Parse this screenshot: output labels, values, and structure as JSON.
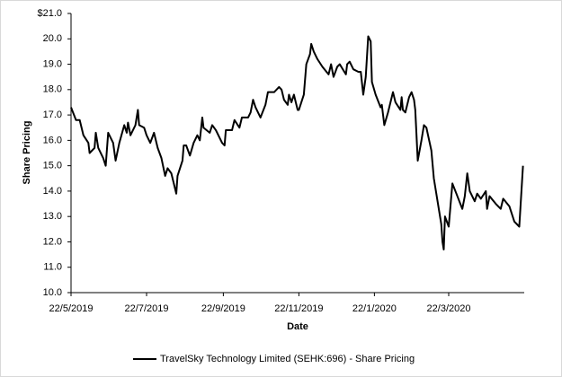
{
  "chart_data": {
    "type": "line",
    "y_label": "Share Pricing",
    "x_label": "Date",
    "xlim": [
      "2019-05-22",
      "2020-05-22"
    ],
    "xticks": [
      {
        "value": "2019-05-22",
        "label": "22/5/2019"
      },
      {
        "value": "2019-07-22",
        "label": "22/7/2019"
      },
      {
        "value": "2019-09-22",
        "label": "22/9/2019"
      },
      {
        "value": "2019-11-22",
        "label": "22/11/2019"
      },
      {
        "value": "2020-01-22",
        "label": "22/1/2020"
      },
      {
        "value": "2020-03-22",
        "label": "22/3/2020"
      }
    ],
    "ylim": [
      10,
      21
    ],
    "yticks": [
      {
        "value": 10,
        "label": "10.0"
      },
      {
        "value": 11,
        "label": "11.0"
      },
      {
        "value": 12,
        "label": "12.0"
      },
      {
        "value": 13,
        "label": "13.0"
      },
      {
        "value": 14,
        "label": "14.0"
      },
      {
        "value": 15,
        "label": "15.0"
      },
      {
        "value": 16,
        "label": "16.0"
      },
      {
        "value": 17,
        "label": "17.0"
      },
      {
        "value": 18,
        "label": "18.0"
      },
      {
        "value": 19,
        "label": "19.0"
      },
      {
        "value": 20,
        "label": "20.0"
      },
      {
        "value": 21,
        "label": "$21.0"
      }
    ],
    "legend": "bottom",
    "x": [
      "2019-05-22",
      "2019-05-26",
      "2019-05-29",
      "2019-06-01",
      "2019-06-05",
      "2019-06-06",
      "2019-06-10",
      "2019-06-11",
      "2019-06-13",
      "2019-06-17",
      "2019-06-19",
      "2019-06-21",
      "2019-06-25",
      "2019-06-27",
      "2019-06-30",
      "2019-07-04",
      "2019-07-06",
      "2019-07-07",
      "2019-07-09",
      "2019-07-13",
      "2019-07-15",
      "2019-07-16",
      "2019-07-20",
      "2019-07-22",
      "2019-07-25",
      "2019-07-28",
      "2019-07-31",
      "2019-08-03",
      "2019-08-06",
      "2019-08-08",
      "2019-08-11",
      "2019-08-15",
      "2019-08-16",
      "2019-08-20",
      "2019-08-21",
      "2019-08-23",
      "2019-08-26",
      "2019-08-29",
      "2019-09-01",
      "2019-09-03",
      "2019-09-05",
      "2019-09-06",
      "2019-09-11",
      "2019-09-13",
      "2019-09-16",
      "2019-09-21",
      "2019-09-23",
      "2019-09-24",
      "2019-09-29",
      "2019-10-01",
      "2019-10-05",
      "2019-10-07",
      "2019-10-12",
      "2019-10-14",
      "2019-10-16",
      "2019-10-18",
      "2019-10-22",
      "2019-10-26",
      "2019-10-28",
      "2019-11-02",
      "2019-11-06",
      "2019-11-08",
      "2019-11-10",
      "2019-11-13",
      "2019-11-14",
      "2019-11-16",
      "2019-11-18",
      "2019-11-21",
      "2019-11-22",
      "2019-11-26",
      "2019-11-28",
      "2019-12-01",
      "2019-12-02",
      "2019-12-04",
      "2019-12-07",
      "2019-12-11",
      "2019-12-16",
      "2019-12-18",
      "2019-12-20",
      "2019-12-23",
      "2019-12-25",
      "2019-12-30",
      "2019-12-31",
      "2020-01-02",
      "2020-01-05",
      "2020-01-09",
      "2020-01-11",
      "2020-01-13",
      "2020-01-15",
      "2020-01-17",
      "2020-01-19",
      "2020-01-20",
      "2020-01-23",
      "2020-01-27",
      "2020-01-28",
      "2020-01-30",
      "2020-02-02",
      "2020-02-06",
      "2020-02-08",
      "2020-02-12",
      "2020-02-13",
      "2020-02-14",
      "2020-02-16",
      "2020-02-19",
      "2020-02-21",
      "2020-02-23",
      "2020-02-24",
      "2020-02-26",
      "2020-02-29",
      "2020-03-02",
      "2020-03-04",
      "2020-03-08",
      "2020-03-10",
      "2020-03-14",
      "2020-03-16",
      "2020-03-17",
      "2020-03-18",
      "2020-03-19",
      "2020-03-22",
      "2020-03-25",
      "2020-03-29",
      "2020-04-02",
      "2020-04-04",
      "2020-04-06",
      "2020-04-08",
      "2020-04-12",
      "2020-04-14",
      "2020-04-17",
      "2020-04-21",
      "2020-04-22",
      "2020-04-24",
      "2020-04-29",
      "2020-05-03",
      "2020-05-05",
      "2020-05-10",
      "2020-05-14",
      "2020-05-18",
      "2020-05-21"
    ],
    "series": [
      {
        "name": "TravelSky Technology Limited (SEHK:696) - Share Pricing",
        "color": "#000000",
        "values": [
          17.3,
          16.8,
          16.8,
          16.2,
          15.9,
          15.5,
          15.7,
          16.3,
          15.7,
          15.3,
          15.0,
          16.3,
          15.9,
          15.2,
          15.9,
          16.6,
          16.3,
          16.7,
          16.2,
          16.6,
          17.2,
          16.6,
          16.5,
          16.2,
          15.9,
          16.3,
          15.7,
          15.3,
          14.6,
          14.9,
          14.7,
          13.9,
          14.6,
          15.2,
          15.8,
          15.8,
          15.4,
          15.9,
          16.2,
          16.0,
          16.9,
          16.5,
          16.3,
          16.6,
          16.4,
          15.9,
          15.8,
          16.4,
          16.4,
          16.8,
          16.5,
          16.9,
          16.9,
          17.1,
          17.6,
          17.3,
          16.9,
          17.4,
          17.9,
          17.9,
          18.1,
          18.0,
          17.6,
          17.4,
          17.8,
          17.5,
          17.8,
          17.2,
          17.2,
          17.8,
          19.0,
          19.4,
          19.8,
          19.5,
          19.2,
          18.9,
          18.6,
          19.0,
          18.5,
          18.9,
          19.0,
          18.6,
          19.0,
          19.1,
          18.8,
          18.7,
          18.7,
          17.8,
          18.5,
          20.1,
          19.9,
          18.3,
          17.8,
          17.3,
          17.4,
          16.6,
          17.1,
          17.9,
          17.5,
          17.2,
          17.7,
          17.2,
          17.1,
          17.7,
          17.9,
          17.6,
          17.2,
          15.2,
          16.0,
          16.6,
          16.5,
          15.6,
          14.5,
          13.3,
          12.7,
          12.0,
          11.7,
          13.0,
          12.6,
          14.3,
          13.8,
          13.3,
          13.8,
          14.7,
          14.0,
          13.6,
          13.9,
          13.7,
          14.0,
          13.3,
          13.8,
          13.5,
          13.3,
          13.7,
          13.4,
          12.8,
          12.6,
          15.0
        ]
      }
    ]
  }
}
